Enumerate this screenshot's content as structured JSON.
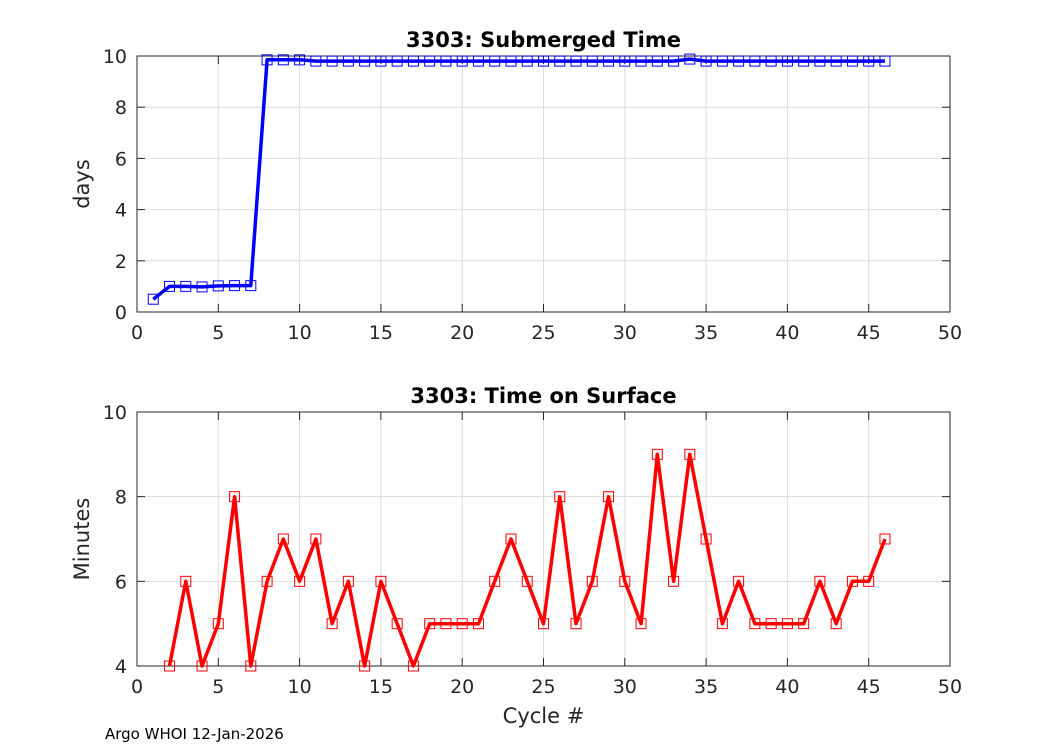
{
  "footer": "Argo WHOI 12-Jan-2026",
  "chart_data": [
    {
      "type": "line",
      "title": "3303: Submerged Time",
      "xlabel": "",
      "ylabel": "days",
      "xlim": [
        0,
        50
      ],
      "ylim": [
        0,
        10
      ],
      "xticks": [
        0,
        5,
        10,
        15,
        20,
        25,
        30,
        35,
        40,
        45,
        50
      ],
      "yticks": [
        0,
        2,
        4,
        6,
        8,
        10
      ],
      "grid": true,
      "color": "#0000ff",
      "marker": "square",
      "series": [
        {
          "name": "Submerged Time",
          "x": [
            1,
            2,
            3,
            4,
            5,
            6,
            7,
            8,
            9,
            10,
            11,
            12,
            13,
            14,
            15,
            16,
            17,
            18,
            19,
            20,
            21,
            22,
            23,
            24,
            25,
            26,
            27,
            28,
            29,
            30,
            31,
            32,
            33,
            34,
            35,
            36,
            37,
            38,
            39,
            40,
            41,
            42,
            43,
            44,
            45,
            46
          ],
          "y": [
            0.5,
            1.0,
            1.0,
            0.98,
            1.02,
            1.03,
            1.03,
            9.85,
            9.85,
            9.85,
            9.8,
            9.8,
            9.8,
            9.8,
            9.8,
            9.8,
            9.8,
            9.8,
            9.8,
            9.8,
            9.8,
            9.8,
            9.8,
            9.8,
            9.8,
            9.8,
            9.8,
            9.8,
            9.8,
            9.8,
            9.8,
            9.8,
            9.8,
            9.88,
            9.8,
            9.8,
            9.8,
            9.8,
            9.8,
            9.8,
            9.8,
            9.8,
            9.8,
            9.8,
            9.8,
            9.8
          ]
        }
      ]
    },
    {
      "type": "line",
      "title": "3303: Time on Surface",
      "xlabel": "Cycle #",
      "ylabel": "Minutes",
      "xlim": [
        0,
        50
      ],
      "ylim": [
        4,
        10
      ],
      "xticks": [
        0,
        5,
        10,
        15,
        20,
        25,
        30,
        35,
        40,
        45,
        50
      ],
      "yticks": [
        4,
        6,
        8,
        10
      ],
      "grid": true,
      "color": "#ff0000",
      "marker": "square",
      "series": [
        {
          "name": "Time on Surface",
          "x": [
            2,
            3,
            4,
            5,
            6,
            7,
            8,
            9,
            10,
            11,
            12,
            13,
            14,
            15,
            16,
            17,
            18,
            19,
            20,
            21,
            22,
            23,
            24,
            25,
            26,
            27,
            28,
            29,
            30,
            31,
            32,
            33,
            34,
            35,
            36,
            37,
            38,
            39,
            40,
            41,
            42,
            43,
            44,
            45,
            46
          ],
          "y": [
            4,
            6,
            4,
            5,
            8,
            4,
            6,
            7,
            6,
            7,
            5,
            6,
            4,
            6,
            5,
            4,
            5,
            5,
            5,
            5,
            6,
            7,
            6,
            5,
            8,
            5,
            6,
            8,
            6,
            5,
            9,
            6,
            9,
            7,
            5,
            6,
            5,
            5,
            5,
            5,
            6,
            5,
            6,
            6,
            7
          ]
        }
      ]
    }
  ]
}
